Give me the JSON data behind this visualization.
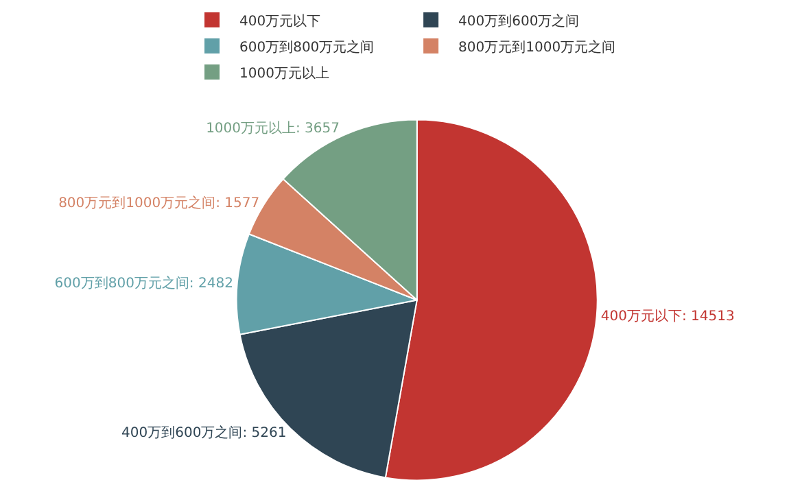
{
  "chart_data": {
    "type": "pie",
    "categories": [
      "400万元以下",
      "400万到600万之间",
      "600万到800万元之间",
      "800万元到1000万元之间",
      "1000万元以上"
    ],
    "values": [
      14513,
      5261,
      2482,
      1577,
      3657
    ],
    "value_labels": [
      "400万元以下: 14513",
      "400万到600万之间: 5261",
      "600万到800万元之间: 2482",
      "800万元到1000万元之间: 1577",
      "1000万元以上: 3657"
    ],
    "colors": [
      "#c23531",
      "#2f4554",
      "#61a0a8",
      "#d48265",
      "#749f83"
    ],
    "legend": "top"
  }
}
